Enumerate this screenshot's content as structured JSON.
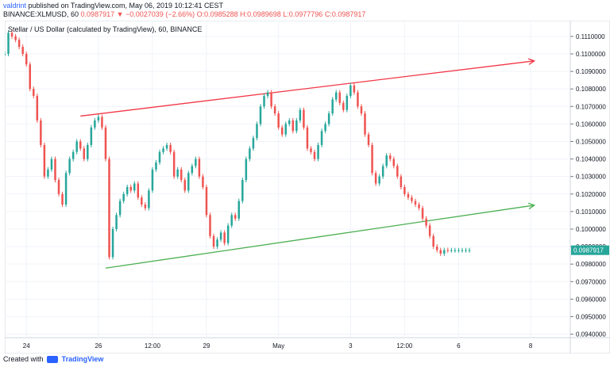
{
  "header": {
    "author": "valdrint",
    "published_text": "published on TradingView.com, May 06, 2019 10:12:41 CEST",
    "symbol": "BINANCE:XLMUSD, 60",
    "last_price": "0.0987917",
    "change": "▼ −0.0027039 (−2.66%)",
    "open": "O:0.0985288",
    "high": "H:0.0989698",
    "low": "L:0.0977796",
    "close": "C:0.0987917"
  },
  "legend_title": "Stellar / US Dollar (calculated by TradingView), 60, BINANCE",
  "footer": {
    "prefix": "Created with",
    "brand": "TradingView"
  },
  "colors": {
    "up": "#26a69a",
    "down": "#ef5350",
    "red_line": "#f23645",
    "green_line": "#4caf50",
    "price_label_bg": "#26a69a"
  },
  "chart_data": {
    "type": "line",
    "title": "Stellar / US Dollar (calculated by TradingView), 60, BINANCE",
    "xlabel": "",
    "ylabel": "",
    "ylim": [
      0.0938,
      0.1119
    ],
    "y_ticks": [
      "0.1110000",
      "0.1100000",
      "0.1090000",
      "0.1080000",
      "0.1070000",
      "0.1060000",
      "0.1050000",
      "0.1040000",
      "0.1030000",
      "0.1020000",
      "0.1010000",
      "0.1000000",
      "0.0990000",
      "0.0980000",
      "0.0970000",
      "0.0960000",
      "0.0950000",
      "0.0940000"
    ],
    "x_ticks": [
      "24",
      "26",
      "12:00",
      "29",
      "May",
      "3",
      "12:00",
      "6",
      "8"
    ],
    "x_tick_index": [
      6,
      26,
      41,
      56,
      76,
      96,
      111,
      126,
      146
    ],
    "x_range": [
      0,
      157
    ],
    "current_price_label": "0.0987917",
    "series": [
      {
        "x": [
          0,
          1,
          2,
          3,
          4,
          5,
          6,
          7,
          8,
          9,
          10,
          11,
          12,
          13,
          14,
          15,
          16,
          17,
          18,
          19,
          20,
          21,
          22,
          23,
          24,
          25,
          26,
          27,
          28,
          29,
          30,
          31,
          32,
          33,
          34,
          35,
          36,
          37,
          38,
          39,
          40,
          41,
          42,
          43,
          44,
          45,
          46,
          47,
          48,
          49,
          50,
          51,
          52,
          53,
          54,
          55,
          56,
          57,
          58,
          59,
          60,
          61,
          62,
          63,
          64,
          65,
          66,
          67,
          68,
          69,
          70,
          71,
          72,
          73,
          74,
          75,
          76,
          77,
          78,
          79,
          80,
          81,
          82,
          83,
          84,
          85,
          86,
          87,
          88,
          89,
          90,
          91,
          92,
          93,
          94,
          95,
          96,
          97,
          98,
          99,
          100,
          101,
          102,
          103,
          104,
          105,
          106,
          107,
          108,
          109,
          110,
          111,
          112,
          113,
          114,
          115,
          116,
          117,
          118,
          119,
          120,
          121,
          122,
          123,
          124,
          125,
          126,
          127,
          128,
          129
        ],
        "values": [
          0.11,
          0.1112,
          0.111,
          0.1108,
          0.1104,
          0.11,
          0.1094,
          0.108,
          0.1076,
          0.1062,
          0.1048,
          0.103,
          0.1034,
          0.104,
          0.1028,
          0.102,
          0.1014,
          0.1032,
          0.104,
          0.1044,
          0.105,
          0.1046,
          0.104,
          0.1048,
          0.1058,
          0.1062,
          0.1064,
          0.1058,
          0.104,
          0.0984,
          0.1,
          0.1008,
          0.1016,
          0.102,
          0.1024,
          0.1022,
          0.1026,
          0.1018,
          0.1014,
          0.1012,
          0.1022,
          0.1034,
          0.1038,
          0.1044,
          0.1046,
          0.1048,
          0.1044,
          0.103,
          0.1034,
          0.1028,
          0.1022,
          0.1032,
          0.1036,
          0.104,
          0.103,
          0.1024,
          0.1008,
          0.0996,
          0.099,
          0.0994,
          0.0998,
          0.0992,
          0.1002,
          0.1008,
          0.1006,
          0.1016,
          0.1028,
          0.104,
          0.1046,
          0.1052,
          0.106,
          0.107,
          0.1076,
          0.1078,
          0.107,
          0.1066,
          0.1058,
          0.1054,
          0.106,
          0.1062,
          0.1056,
          0.1062,
          0.1068,
          0.1058,
          0.1046,
          0.1044,
          0.104,
          0.1048,
          0.1056,
          0.106,
          0.1066,
          0.1074,
          0.1078,
          0.1072,
          0.1068,
          0.1076,
          0.1082,
          0.1078,
          0.107,
          0.1066,
          0.1054,
          0.1048,
          0.1032,
          0.1026,
          0.103,
          0.1036,
          0.1042,
          0.104,
          0.1036,
          0.103,
          0.1024,
          0.102,
          0.1018,
          0.1016,
          0.1014,
          0.1012,
          0.1006,
          0.1002,
          0.0996,
          0.099,
          0.0988,
          0.0986,
          0.0988,
          0.0987917,
          0.0987917,
          0.0987917,
          0.0987917,
          0.0987917,
          0.0987917,
          0.0987917
        ]
      }
    ],
    "trendlines": [
      {
        "color": "red",
        "x": [
          21,
          147
        ],
        "y": [
          0.10645,
          0.1096
        ]
      },
      {
        "color": "green",
        "x": [
          28,
          147
        ],
        "y": [
          0.09777,
          0.10136
        ]
      }
    ]
  }
}
